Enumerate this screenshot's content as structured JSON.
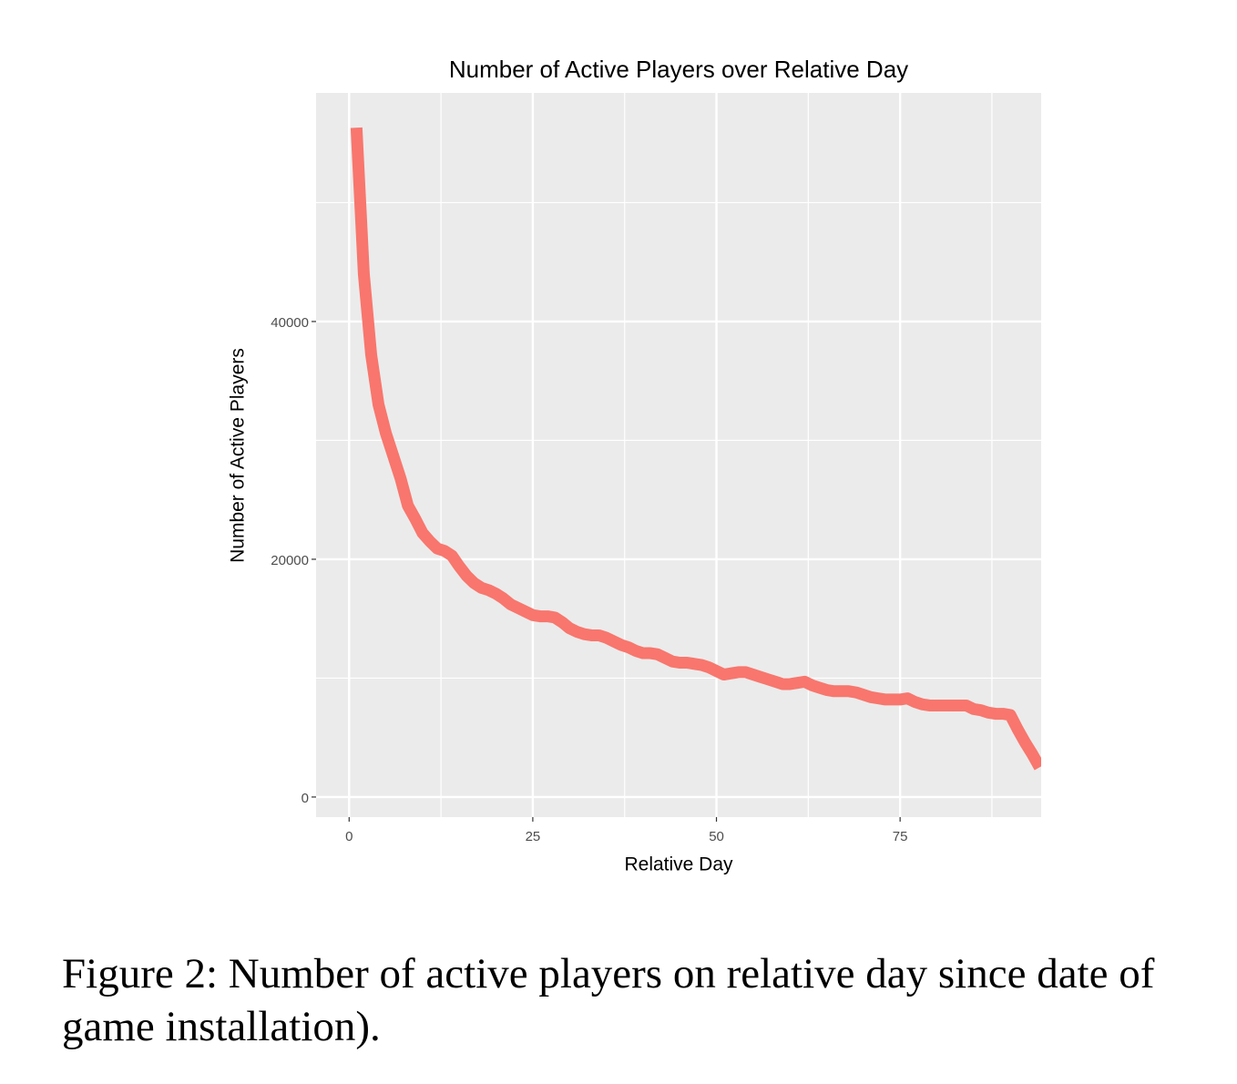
{
  "chart_data": {
    "type": "line",
    "title": "Number of Active Players over Relative Day",
    "xlabel": "Relative Day",
    "ylabel": "Number of Active Players",
    "x": [
      1,
      2,
      3,
      4,
      5,
      6,
      7,
      8,
      9,
      10,
      11,
      12,
      13,
      14,
      15,
      16,
      17,
      18,
      19,
      20,
      21,
      22,
      23,
      24,
      25,
      26,
      27,
      28,
      29,
      30,
      31,
      32,
      33,
      34,
      35,
      36,
      37,
      38,
      39,
      40,
      41,
      42,
      43,
      44,
      45,
      46,
      47,
      48,
      49,
      50,
      51,
      52,
      53,
      54,
      55,
      56,
      57,
      58,
      59,
      60,
      61,
      62,
      63,
      64,
      65,
      66,
      67,
      68,
      69,
      70,
      71,
      72,
      73,
      74,
      75,
      76,
      77,
      78,
      79,
      80,
      81,
      82,
      83,
      84,
      85,
      86,
      87,
      88,
      89,
      90,
      91,
      92,
      93,
      94
    ],
    "series": [
      {
        "name": "Active Players",
        "color": "#f8766d",
        "values": [
          56300,
          44000,
          37200,
          33000,
          30600,
          28700,
          26800,
          24500,
          23400,
          22200,
          21500,
          20900,
          20700,
          20300,
          19400,
          18600,
          18000,
          17600,
          17400,
          17100,
          16700,
          16200,
          15900,
          15600,
          15300,
          15200,
          15200,
          15100,
          14700,
          14200,
          13900,
          13700,
          13600,
          13600,
          13400,
          13100,
          12800,
          12600,
          12300,
          12100,
          12100,
          12000,
          11700,
          11400,
          11300,
          11300,
          11200,
          11100,
          10900,
          10600,
          10300,
          10400,
          10500,
          10500,
          10300,
          10100,
          9900,
          9700,
          9500,
          9500,
          9600,
          9700,
          9400,
          9200,
          9000,
          8900,
          8900,
          8900,
          8800,
          8600,
          8400,
          8300,
          8200,
          8200,
          8200,
          8300,
          8000,
          7800,
          7700,
          7700,
          7700,
          7700,
          7700,
          7700,
          7400,
          7300,
          7100,
          7000,
          7000,
          6900,
          5700,
          4600,
          3600,
          2500
        ]
      }
    ],
    "xlim": [
      -4.5,
      94.2
    ],
    "ylim": [
      -1690,
      59230
    ],
    "xticks": [
      0,
      25,
      50,
      75
    ],
    "yticks": [
      0,
      20000,
      40000
    ],
    "grid": true
  },
  "caption": "Figure 2: Number of active players on relative day since date of game installation)."
}
